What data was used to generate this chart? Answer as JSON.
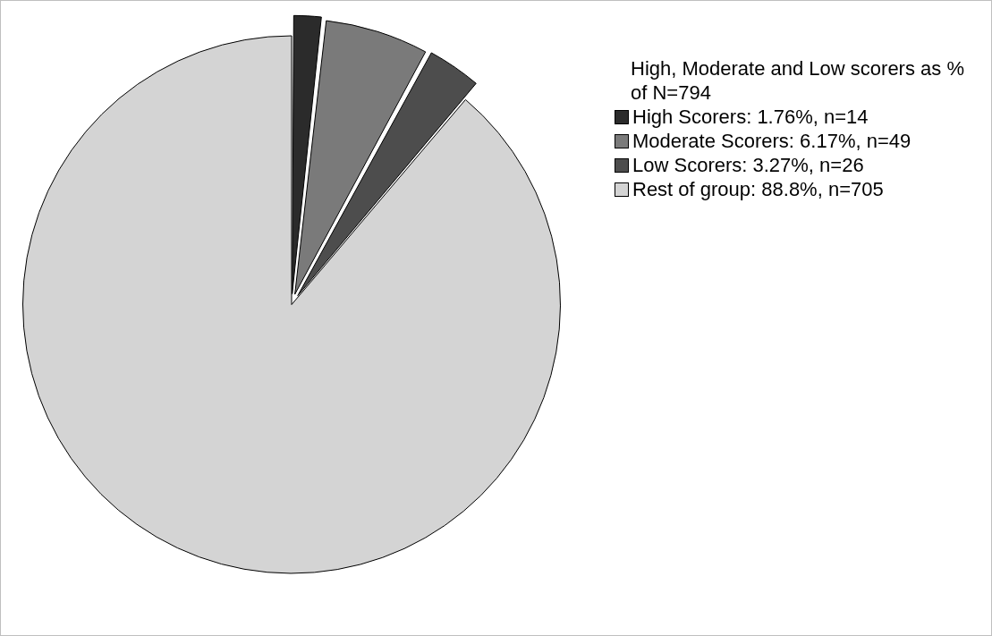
{
  "chart_data": {
    "type": "pie",
    "legend_title": "High, Moderate and Low scorers as % of N=794",
    "categories": [
      "High Scorers: 1.76%, n=14",
      "Moderate Scorers: 6.17%, n=49",
      "Low Scorers: 3.27%, n=26",
      "Rest of group: 88.8%, n=705"
    ],
    "values": [
      1.76,
      6.17,
      3.27,
      88.8
    ],
    "colors": [
      "#2b2b2b",
      "#7a7a7a",
      "#4d4d4d",
      "#d4d4d4"
    ],
    "legend": "right"
  }
}
